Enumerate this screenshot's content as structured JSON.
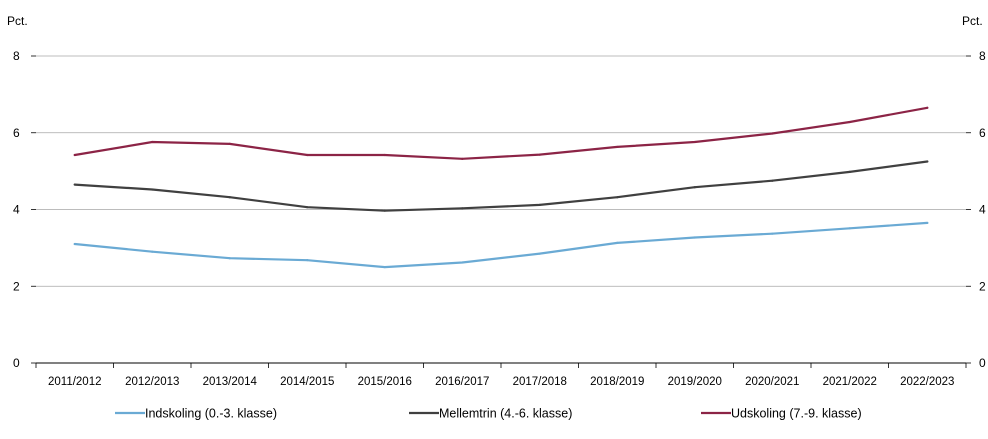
{
  "chart_data": {
    "type": "line",
    "ylabel_left": "Pct.",
    "ylabel_right": "Pct.",
    "ylim": [
      0,
      8
    ],
    "yticks": [
      "0",
      "2",
      "4",
      "6",
      "8"
    ],
    "grid": true,
    "legend_position": "bottom",
    "categories": [
      "2011/2012",
      "2012/2013",
      "2013/2014",
      "2014/2015",
      "2015/2016",
      "2016/2017",
      "2017/2018",
      "2018/2019",
      "2019/2020",
      "2020/2021",
      "2021/2022",
      "2022/2023"
    ],
    "series": [
      {
        "name": "Indskoling (0.-3. klasse)",
        "color": "#6aaad4",
        "values": [
          3.1,
          2.9,
          2.73,
          2.68,
          2.5,
          2.62,
          2.85,
          3.13,
          3.27,
          3.37,
          3.51,
          3.65
        ]
      },
      {
        "name": "Mellemtrin (4.-6. klasse)",
        "color": "#404040",
        "values": [
          4.65,
          4.52,
          4.32,
          4.06,
          3.97,
          4.03,
          4.12,
          4.32,
          4.58,
          4.75,
          4.98,
          5.25
        ]
      },
      {
        "name": "Udskoling (7.-9. klasse)",
        "color": "#8c2446",
        "values": [
          5.42,
          5.76,
          5.71,
          5.42,
          5.42,
          5.32,
          5.43,
          5.63,
          5.76,
          5.98,
          6.28,
          6.65
        ]
      }
    ]
  }
}
